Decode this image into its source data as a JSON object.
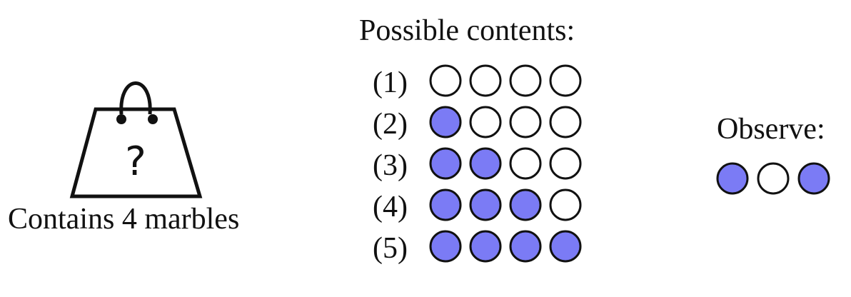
{
  "bag": {
    "symbol": "?",
    "caption": "Contains 4 marbles"
  },
  "possible": {
    "heading": "Possible contents:",
    "rows": [
      {
        "label": "(1)",
        "marbles": [
          0,
          0,
          0,
          0
        ]
      },
      {
        "label": "(2)",
        "marbles": [
          1,
          0,
          0,
          0
        ]
      },
      {
        "label": "(3)",
        "marbles": [
          1,
          1,
          0,
          0
        ]
      },
      {
        "label": "(4)",
        "marbles": [
          1,
          1,
          1,
          0
        ]
      },
      {
        "label": "(5)",
        "marbles": [
          1,
          1,
          1,
          1
        ]
      }
    ]
  },
  "observe": {
    "heading": "Observe:",
    "marbles": [
      1,
      0,
      1
    ]
  },
  "colors": {
    "filled": "#7B7BF5",
    "empty": "#ffffff",
    "stroke": "#111111"
  }
}
